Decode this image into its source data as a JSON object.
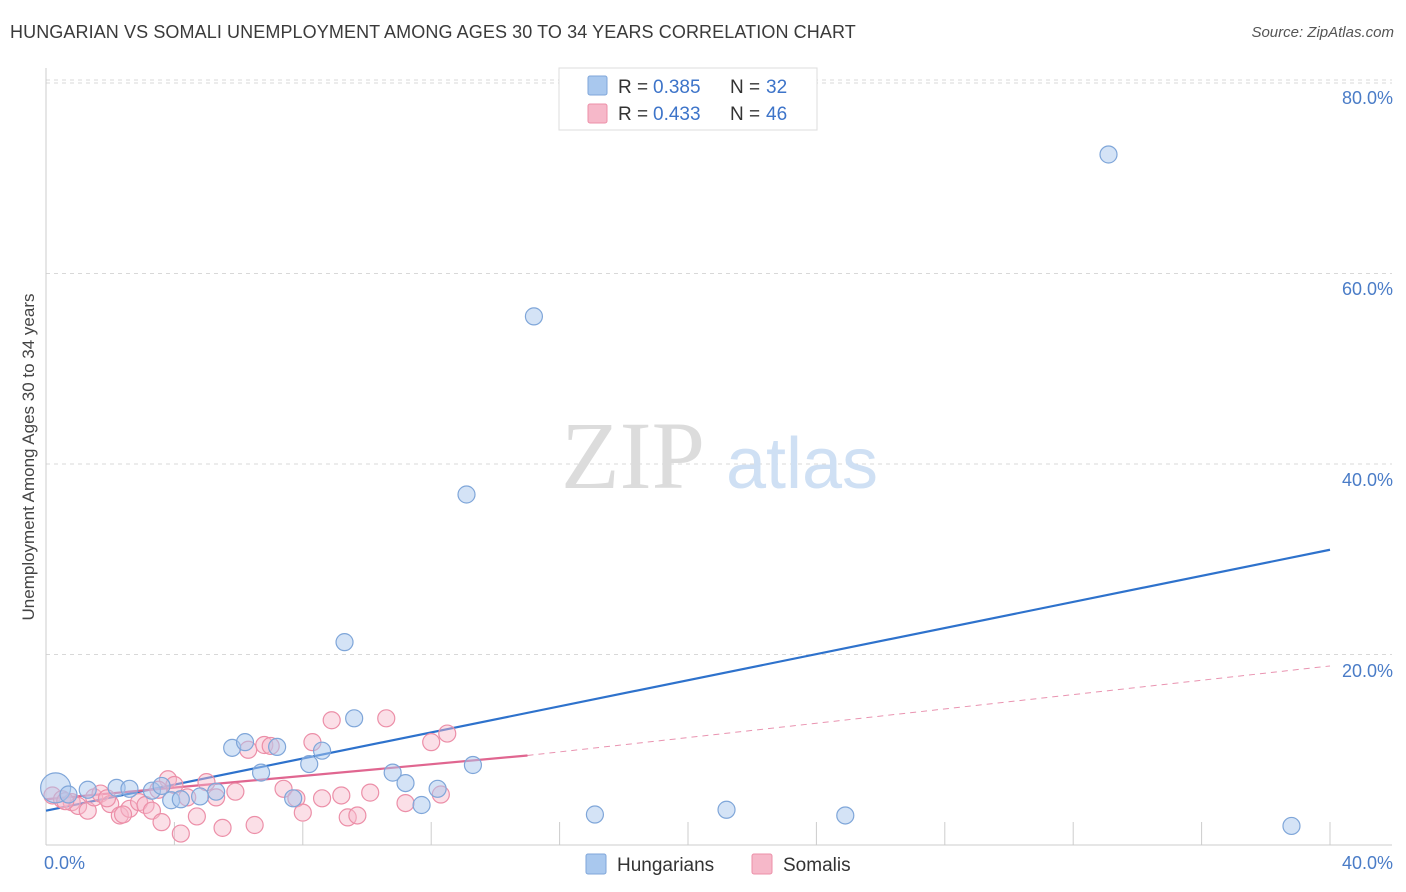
{
  "title": "HUNGARIAN VS SOMALI UNEMPLOYMENT AMONG AGES 30 TO 34 YEARS CORRELATION CHART",
  "source": "Source: ZipAtlas.com",
  "watermark": {
    "zip": "ZIP",
    "atlas": "atlas"
  },
  "colors": {
    "hungarian_fill": "#a9c8ee",
    "hungarian_stroke": "#7fa6d9",
    "hungarian_line": "#2e72cc",
    "somali_fill": "#f6b8c9",
    "somali_stroke": "#ec8fa8",
    "somali_line": "#e06690",
    "grid": "#d8d8d8",
    "tick_text": "#4a7cc7"
  },
  "legend": {
    "r_label": "R =",
    "n_label": "N =",
    "hungarians": {
      "r": "0.385",
      "n": "32"
    },
    "somalis": {
      "r": "0.433",
      "n": "46"
    }
  },
  "chart_data": {
    "type": "scatter",
    "title": "HUNGARIAN VS SOMALI UNEMPLOYMENT AMONG AGES 30 TO 34 YEARS CORRELATION CHART",
    "xlabel": "",
    "ylabel": "Unemployment Among Ages 30 to 34 years",
    "xlim": [
      0,
      40
    ],
    "ylim": [
      0,
      82
    ],
    "x_tick_labels": [
      "0.0%",
      "40.0%"
    ],
    "y_ticks": [
      20,
      40,
      60,
      80
    ],
    "y_tick_labels": [
      "20.0%",
      "40.0%",
      "60.0%",
      "80.0%"
    ],
    "grid": true,
    "series": [
      {
        "name": "Hungarians",
        "points": [
          [
            0.3,
            6.0
          ],
          [
            0.7,
            5.3
          ],
          [
            1.3,
            5.8
          ],
          [
            2.2,
            6.0
          ],
          [
            2.6,
            5.9
          ],
          [
            3.3,
            5.7
          ],
          [
            3.6,
            6.2
          ],
          [
            3.9,
            4.7
          ],
          [
            4.2,
            4.8
          ],
          [
            4.8,
            5.1
          ],
          [
            5.3,
            5.6
          ],
          [
            5.8,
            10.2
          ],
          [
            6.2,
            10.8
          ],
          [
            6.7,
            7.6
          ],
          [
            7.2,
            10.3
          ],
          [
            7.7,
            4.9
          ],
          [
            8.2,
            8.5
          ],
          [
            8.6,
            9.9
          ],
          [
            9.3,
            21.3
          ],
          [
            9.6,
            13.3
          ],
          [
            10.8,
            7.6
          ],
          [
            11.2,
            6.5
          ],
          [
            11.7,
            4.2
          ],
          [
            12.2,
            5.9
          ],
          [
            13.1,
            36.8
          ],
          [
            13.3,
            8.4
          ],
          [
            15.2,
            55.5
          ],
          [
            17.1,
            3.2
          ],
          [
            21.2,
            3.7
          ],
          [
            24.9,
            3.1
          ],
          [
            33.1,
            72.5
          ],
          [
            38.8,
            2.0
          ]
        ],
        "trend": {
          "x": [
            0,
            40
          ],
          "y": [
            3.6,
            31.0
          ]
        }
      },
      {
        "name": "Somalis",
        "points": [
          [
            0.2,
            5.2
          ],
          [
            0.5,
            4.8
          ],
          [
            0.8,
            4.5
          ],
          [
            1.0,
            4.1
          ],
          [
            1.3,
            3.6
          ],
          [
            1.5,
            5.0
          ],
          [
            1.7,
            5.4
          ],
          [
            2.0,
            4.3
          ],
          [
            2.3,
            3.1
          ],
          [
            2.6,
            3.8
          ],
          [
            2.9,
            4.5
          ],
          [
            3.1,
            4.2
          ],
          [
            3.3,
            3.6
          ],
          [
            3.6,
            2.4
          ],
          [
            3.8,
            6.9
          ],
          [
            4.0,
            6.3
          ],
          [
            4.2,
            1.2
          ],
          [
            4.4,
            5.0
          ],
          [
            4.7,
            3.0
          ],
          [
            5.0,
            6.6
          ],
          [
            5.3,
            5.0
          ],
          [
            5.5,
            1.8
          ],
          [
            5.9,
            5.6
          ],
          [
            6.3,
            10.0
          ],
          [
            6.5,
            2.1
          ],
          [
            6.8,
            10.5
          ],
          [
            7.0,
            10.4
          ],
          [
            7.4,
            5.9
          ],
          [
            7.8,
            4.9
          ],
          [
            8.0,
            3.4
          ],
          [
            8.3,
            10.8
          ],
          [
            8.6,
            4.9
          ],
          [
            8.9,
            13.1
          ],
          [
            9.2,
            5.2
          ],
          [
            9.4,
            2.9
          ],
          [
            9.7,
            3.1
          ],
          [
            10.1,
            5.5
          ],
          [
            10.6,
            13.3
          ],
          [
            11.2,
            4.4
          ],
          [
            12.0,
            10.8
          ],
          [
            12.3,
            5.3
          ],
          [
            12.5,
            11.7
          ],
          [
            0.6,
            4.6
          ],
          [
            1.9,
            4.9
          ],
          [
            2.4,
            3.2
          ],
          [
            3.5,
            5.8
          ]
        ],
        "trend": {
          "x": [
            0,
            15
          ],
          "y": [
            4.8,
            9.4
          ]
        },
        "trend_extended": {
          "x": [
            15,
            40
          ],
          "y": [
            9.4,
            18.8
          ]
        }
      }
    ]
  }
}
